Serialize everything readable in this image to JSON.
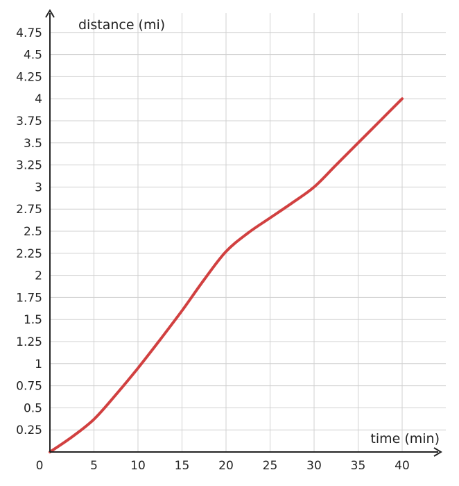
{
  "chart_data": {
    "type": "line",
    "title": "",
    "xlabel": "time (min)",
    "ylabel": "distance (mi)",
    "xlim": [
      0,
      44
    ],
    "ylim": [
      0,
      4.85
    ],
    "x_ticks": [
      5,
      10,
      15,
      20,
      25,
      30,
      35,
      40
    ],
    "y_ticks": [
      0.25,
      0.5,
      0.75,
      1,
      1.25,
      1.5,
      1.75,
      2,
      2.25,
      2.5,
      2.75,
      3,
      3.25,
      3.5,
      3.75,
      4,
      4.25,
      4.5,
      4.75
    ],
    "x_tick_labels": [
      "5",
      "10",
      "15",
      "20",
      "25",
      "30",
      "35",
      "40"
    ],
    "y_tick_labels": [
      "0.25",
      "0.5",
      "0.75",
      "1",
      "1.25",
      "1.5",
      "1.75",
      "2",
      "2.25",
      "2.5",
      "2.75",
      "3",
      "3.25",
      "3.5",
      "3.75",
      "4",
      "4.25",
      "4.5",
      "4.75"
    ],
    "origin_label": "0",
    "grid": true,
    "line_color": "#d14040",
    "series": [
      {
        "x": [
          0,
          2.5,
          5,
          7.5,
          10,
          12.5,
          15,
          17.5,
          20,
          22.5,
          25,
          27.5,
          30,
          32.5,
          35,
          37.5,
          40
        ],
        "values": [
          0,
          0.17,
          0.37,
          0.65,
          0.95,
          1.27,
          1.6,
          1.95,
          2.27,
          2.48,
          2.65,
          2.82,
          3.0,
          3.25,
          3.5,
          3.75,
          4.0
        ]
      }
    ]
  }
}
